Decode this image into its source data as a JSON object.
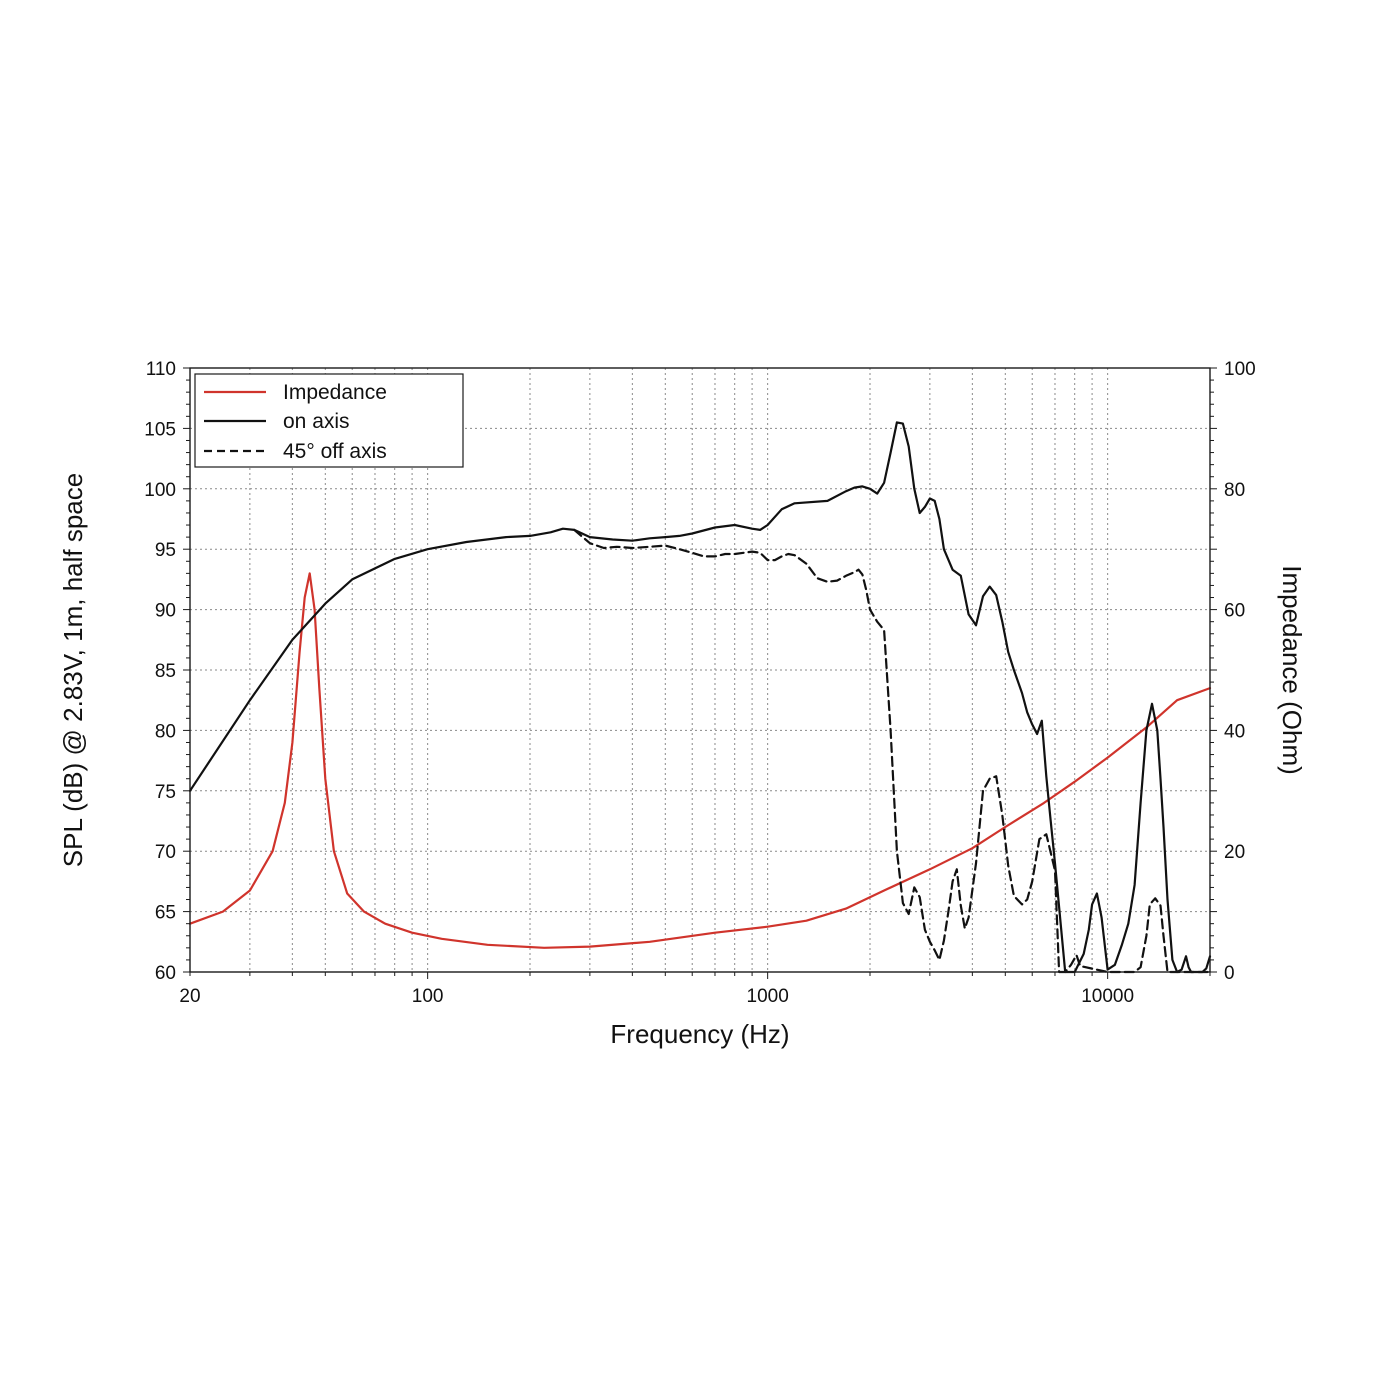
{
  "chart_data": {
    "type": "line",
    "xlabel": "Frequency (Hz)",
    "ylabel_left": "SPL (dB) @ 2.83V, 1m, half space",
    "ylabel_right": "Impedance (Ohm)",
    "x_scale": "log",
    "xlim": [
      20,
      20000
    ],
    "ylim_left": [
      60,
      110
    ],
    "ylim_right": [
      0,
      100
    ],
    "x_ticks": [
      20,
      100,
      1000,
      10000
    ],
    "x_tick_labels": [
      "20",
      "100",
      "1000",
      "10000"
    ],
    "y_left_ticks": [
      60,
      65,
      70,
      75,
      80,
      85,
      90,
      95,
      100,
      105,
      110
    ],
    "y_left_tick_labels": [
      "60",
      "65",
      "70",
      "75",
      "80",
      "85",
      "90",
      "95",
      "100",
      "105",
      "110"
    ],
    "y_right_ticks": [
      0,
      20,
      40,
      60,
      80,
      100
    ],
    "y_right_tick_labels": [
      "0",
      "20",
      "40",
      "60",
      "80",
      "100"
    ],
    "grid": true,
    "legend_position": "top-left",
    "colors": {
      "impedance": "#d0342c",
      "on_axis": "#111111",
      "off_axis": "#111111",
      "grid": "#8a8a8a"
    },
    "series": [
      {
        "name": "Impedance",
        "axis": "right",
        "style": "solid",
        "x": [
          20,
          25,
          30,
          35,
          38,
          40,
          42,
          43.5,
          45,
          46.5,
          48,
          50,
          53,
          58,
          65,
          75,
          90,
          110,
          150,
          220,
          300,
          450,
          700,
          1000,
          1300,
          1700,
          2200,
          3000,
          4000,
          5000,
          6500,
          8000,
          10000,
          13000,
          16000,
          20000
        ],
        "values": [
          8,
          10,
          13.5,
          20,
          28,
          38,
          53,
          62,
          66,
          60,
          47,
          32,
          20,
          13,
          10,
          8,
          6.5,
          5.5,
          4.5,
          4,
          4.2,
          5,
          6.5,
          7.5,
          8.5,
          10.5,
          13.5,
          17,
          20.5,
          24,
          28,
          31.5,
          35.5,
          40.5,
          45,
          47
        ]
      },
      {
        "name": "on axis",
        "axis": "left",
        "style": "solid",
        "x": [
          20,
          30,
          40,
          50,
          60,
          80,
          100,
          130,
          170,
          200,
          230,
          250,
          270,
          300,
          350,
          400,
          450,
          500,
          550,
          600,
          700,
          800,
          900,
          950,
          1000,
          1100,
          1200,
          1500,
          1700,
          1800,
          1900,
          2000,
          2100,
          2200,
          2300,
          2400,
          2500,
          2600,
          2700,
          2800,
          2900,
          3000,
          3100,
          3200,
          3300,
          3500,
          3700,
          3900,
          4100,
          4300,
          4500,
          4700,
          4900,
          5100,
          5300,
          5600,
          5800,
          6000,
          6200,
          6400,
          6600,
          6800,
          7000,
          7500,
          8000,
          8500,
          8800,
          9000,
          9300,
          9600,
          10000,
          10500,
          11000,
          11500,
          12000,
          12500,
          13000,
          13500,
          14000,
          14300,
          14600,
          15000,
          15500,
          16000,
          16500,
          17000,
          17300,
          17600,
          18000,
          19000,
          19500,
          20000
        ],
        "values": [
          75,
          82.5,
          87.5,
          90.5,
          92.5,
          94.2,
          95,
          95.6,
          96,
          96.1,
          96.4,
          96.7,
          96.6,
          96,
          95.8,
          95.7,
          95.9,
          96,
          96.1,
          96.3,
          96.8,
          97,
          96.7,
          96.6,
          97,
          98.3,
          98.8,
          99,
          99.8,
          100.1,
          100.2,
          100,
          99.6,
          100.5,
          103,
          105.5,
          105.4,
          103.5,
          100,
          98,
          98.5,
          99.2,
          99,
          97.5,
          95,
          93.3,
          92.8,
          89.6,
          88.7,
          91.1,
          91.9,
          91.2,
          89,
          86.5,
          85,
          83.1,
          81.5,
          80.5,
          79.7,
          80.8,
          76.2,
          72.5,
          69,
          60,
          60,
          61.5,
          63.5,
          65.6,
          66.5,
          64.5,
          60.2,
          60.6,
          62.2,
          64,
          67.2,
          74,
          80,
          82.2,
          80,
          76,
          72,
          66,
          61,
          60,
          60.2,
          61.3,
          60.4,
          60,
          60,
          60,
          60.3,
          61.3
        ]
      },
      {
        "name": "45° off axis",
        "axis": "left",
        "style": "dashed",
        "x": [
          270,
          300,
          330,
          360,
          400,
          450,
          500,
          550,
          600,
          650,
          700,
          750,
          800,
          850,
          900,
          950,
          1000,
          1050,
          1100,
          1150,
          1200,
          1300,
          1400,
          1500,
          1600,
          1700,
          1800,
          1850,
          1900,
          1950,
          2000,
          2100,
          2200,
          2300,
          2400,
          2500,
          2600,
          2700,
          2800,
          2900,
          3000,
          3100,
          3200,
          3300,
          3400,
          3500,
          3600,
          3700,
          3800,
          3900,
          4100,
          4300,
          4500,
          4700,
          4900,
          5100,
          5300,
          5600,
          5800,
          6000,
          6300,
          6600,
          7000,
          7200,
          7500,
          7800,
          8100,
          8300,
          10000,
          11000,
          12000,
          12500,
          13000,
          13300,
          13800,
          14300,
          14600,
          15000,
          20000
        ],
        "values": [
          96.6,
          95.5,
          95.1,
          95.2,
          95.1,
          95.2,
          95.3,
          95,
          94.7,
          94.4,
          94.4,
          94.6,
          94.6,
          94.7,
          94.8,
          94.7,
          94.1,
          94.1,
          94.4,
          94.6,
          94.5,
          93.8,
          92.6,
          92.3,
          92.4,
          92.8,
          93.1,
          93.3,
          92.9,
          91.6,
          90,
          89,
          88.3,
          80,
          70,
          65.7,
          64.8,
          67,
          66.2,
          63.5,
          62.5,
          61.8,
          61,
          62.6,
          65,
          67.5,
          68.5,
          65.5,
          63.6,
          64.5,
          69,
          75,
          76,
          76.2,
          73,
          68.8,
          66.3,
          65.6,
          66,
          67.5,
          71,
          71.4,
          68.4,
          60,
          60,
          60.6,
          61.4,
          60.5,
          60,
          60,
          60,
          60.4,
          63,
          65.6,
          66.1,
          65.5,
          63,
          60,
          60
        ]
      }
    ]
  }
}
